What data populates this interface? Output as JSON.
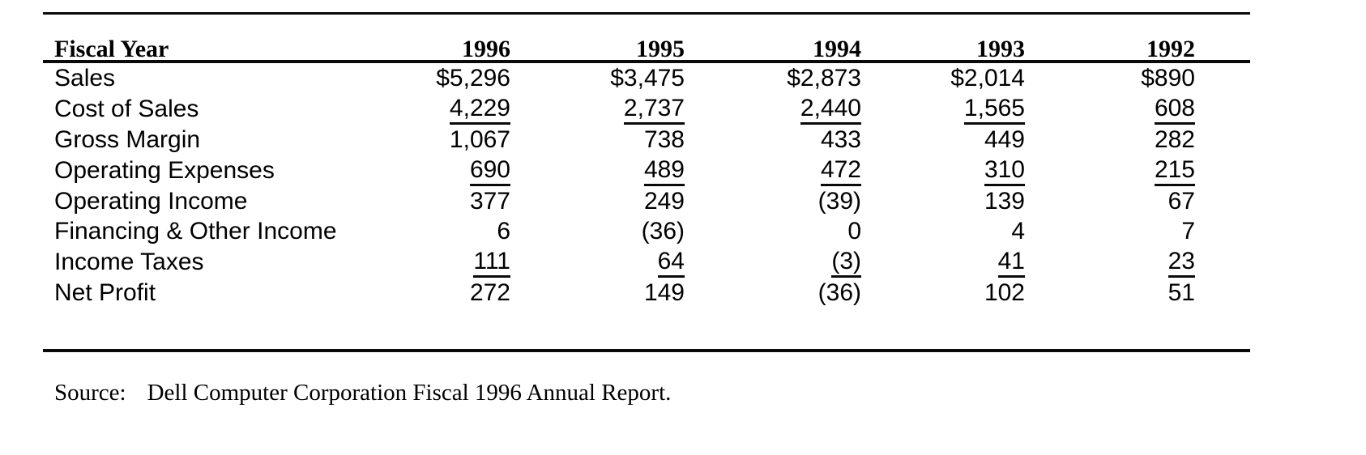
{
  "table": {
    "header": {
      "label": "Fiscal Year",
      "years": [
        "1996",
        "1995",
        "1994",
        "1993",
        "1992"
      ]
    },
    "rows": [
      {
        "label": "Sales",
        "values": [
          "$5,296",
          "$3,475",
          "$2,873",
          "$2,014",
          "$890"
        ],
        "underline": false
      },
      {
        "label": "Cost of Sales",
        "values": [
          "4,229",
          "2,737",
          "2,440",
          "1,565",
          "608"
        ],
        "underline": true
      },
      {
        "label": "Gross Margin",
        "values": [
          "1,067",
          "738",
          "433",
          "449",
          "282"
        ],
        "underline": false
      },
      {
        "label": "Operating Expenses",
        "values": [
          "690",
          "489",
          "472",
          "310",
          "215"
        ],
        "underline": true
      },
      {
        "label": "Operating Income",
        "values": [
          "377",
          "249",
          "(39)",
          "139",
          "67"
        ],
        "underline": false
      },
      {
        "label": "Financing & Other Income",
        "values": [
          "6",
          "(36)",
          "0",
          "4",
          "7"
        ],
        "underline": false
      },
      {
        "label": "Income Taxes",
        "values": [
          "111",
          "64",
          "(3)",
          "41",
          "23"
        ],
        "underline": true
      },
      {
        "label": "Net Profit",
        "values": [
          "272",
          "149",
          "(36)",
          "102",
          "51"
        ],
        "underline": false
      }
    ]
  },
  "source_note": {
    "prefix": "Source:",
    "text": "Dell Computer Corporation Fiscal 1996 Annual Report."
  },
  "colors": {
    "ink": "#0a0a0a",
    "background": "#ffffff"
  }
}
